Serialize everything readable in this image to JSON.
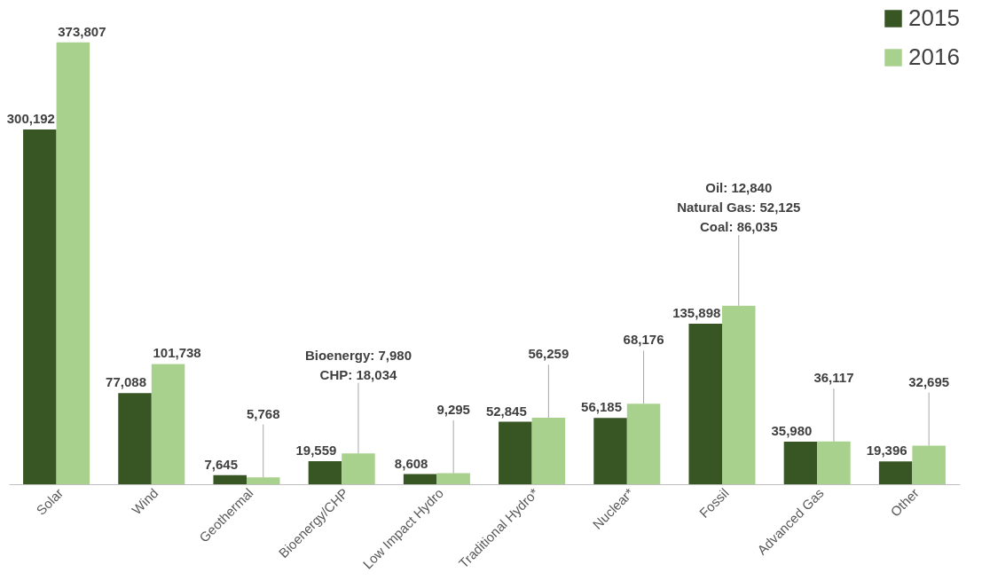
{
  "chart_data": {
    "type": "bar",
    "categories": [
      "Solar",
      "Wind",
      "Geothermal",
      "Bioenergy/CHP",
      "Low Impact Hydro",
      "Traditional Hydro*",
      "Nuclear*",
      "Fossil",
      "Advanced Gas",
      "Other"
    ],
    "series": [
      {
        "name": "2015",
        "color": "#375623",
        "values": [
          300192,
          77088,
          7645,
          19559,
          8608,
          52845,
          56185,
          135898,
          35980,
          19396
        ],
        "value_labels": [
          "300,192",
          "77,088",
          "7,645",
          "19,559",
          "8,608",
          "52,845",
          "56,185",
          "135,898",
          "35,980",
          "19,396"
        ]
      },
      {
        "name": "2016",
        "color": "#a9d18e",
        "values": [
          373807,
          101738,
          5768,
          26014,
          9295,
          56259,
          68176,
          151000,
          36117,
          32695
        ],
        "value_labels": [
          "373,807",
          "101,738",
          "5,768",
          null,
          "9,295",
          "56,259",
          "68,176",
          null,
          "36,117",
          "32,695"
        ]
      }
    ],
    "annotations": [
      "Bioenergy: 7,980\nCHP: 18,034",
      "Oil: 12,840\nNatural Gas: 52,125\nCoal: 86,035"
    ],
    "legend": "top right",
    "grid": false
  }
}
